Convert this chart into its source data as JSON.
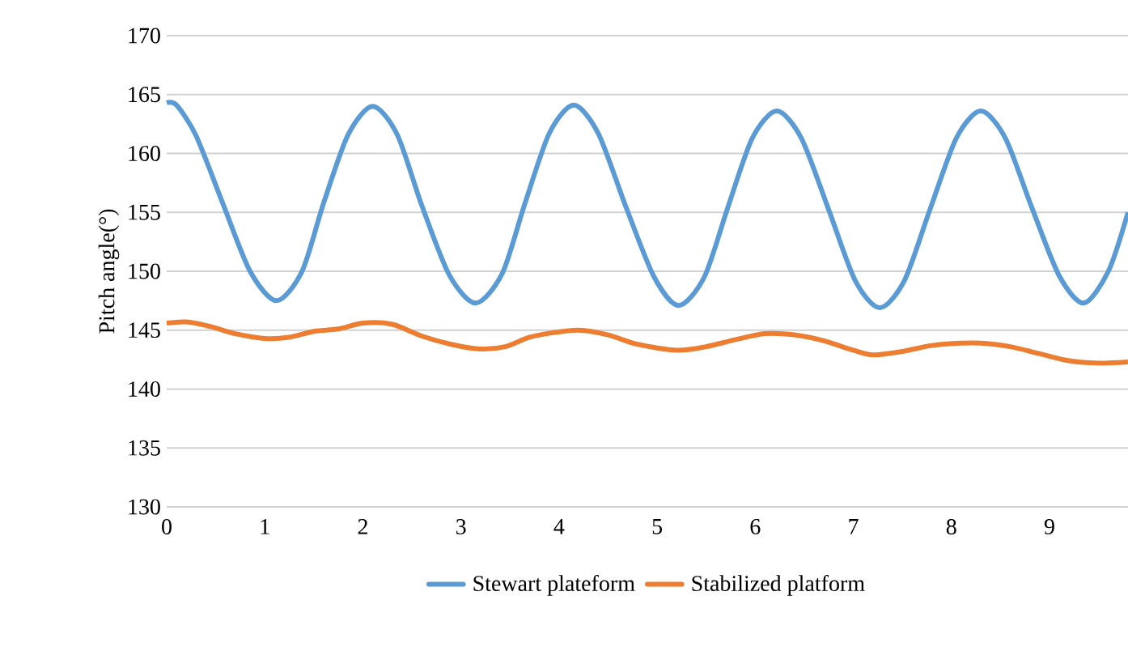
{
  "chart_data": {
    "type": "line",
    "ylabel": "Pitch angle(°)",
    "xlim": [
      0,
      9.8
    ],
    "xticks": [
      0,
      1,
      2,
      3,
      4,
      5,
      6,
      7,
      8,
      9
    ],
    "ylim": [
      130,
      170
    ],
    "yticks": [
      130,
      135,
      140,
      145,
      150,
      155,
      160,
      165,
      170
    ],
    "grid": "y",
    "legend": "bottom",
    "line_style": "solid",
    "marker": "none",
    "series": [
      {
        "name": "Stewart plateform",
        "color": "#5b9bd5",
        "x": [
          0,
          0.1,
          0.3,
          0.57,
          0.85,
          1.12,
          1.38,
          1.6,
          1.85,
          2.1,
          2.35,
          2.6,
          2.88,
          3.15,
          3.42,
          3.65,
          3.9,
          4.15,
          4.4,
          4.68,
          4.97,
          5.22,
          5.48,
          5.72,
          5.97,
          6.22,
          6.47,
          6.75,
          7.02,
          7.27,
          7.52,
          7.78,
          8.05,
          8.3,
          8.55,
          8.82,
          9.1,
          9.35,
          9.6,
          9.8
        ],
        "values": [
          164.3,
          164.1,
          161.5,
          155.8,
          150.0,
          147.5,
          150.0,
          155.8,
          161.6,
          164.0,
          161.6,
          155.6,
          149.7,
          147.3,
          149.8,
          155.7,
          161.7,
          164.1,
          161.7,
          155.5,
          149.5,
          147.1,
          149.5,
          155.4,
          161.3,
          163.6,
          161.3,
          155.2,
          149.2,
          146.9,
          149.2,
          155.2,
          161.3,
          163.6,
          161.3,
          155.4,
          149.6,
          147.3,
          150.0,
          155.0
        ]
      },
      {
        "name": "Stabilized platform",
        "color": "#ed7d31",
        "x": [
          0,
          0.2,
          0.45,
          0.7,
          1.0,
          1.25,
          1.5,
          1.75,
          2.0,
          2.3,
          2.6,
          2.9,
          3.2,
          3.45,
          3.7,
          3.95,
          4.2,
          4.5,
          4.8,
          5.2,
          5.5,
          5.8,
          6.1,
          6.4,
          6.7,
          7.0,
          7.2,
          7.5,
          7.8,
          8.1,
          8.3,
          8.6,
          8.9,
          9.2,
          9.5,
          9.8
        ],
        "values": [
          145.6,
          145.7,
          145.3,
          144.7,
          144.3,
          144.4,
          144.9,
          145.1,
          145.6,
          145.5,
          144.5,
          143.8,
          143.4,
          143.6,
          144.4,
          144.8,
          145.0,
          144.6,
          143.8,
          143.3,
          143.6,
          144.2,
          144.7,
          144.6,
          144.1,
          143.3,
          142.9,
          143.2,
          143.7,
          143.9,
          143.9,
          143.6,
          143.0,
          142.4,
          142.2,
          142.3
        ]
      }
    ]
  }
}
